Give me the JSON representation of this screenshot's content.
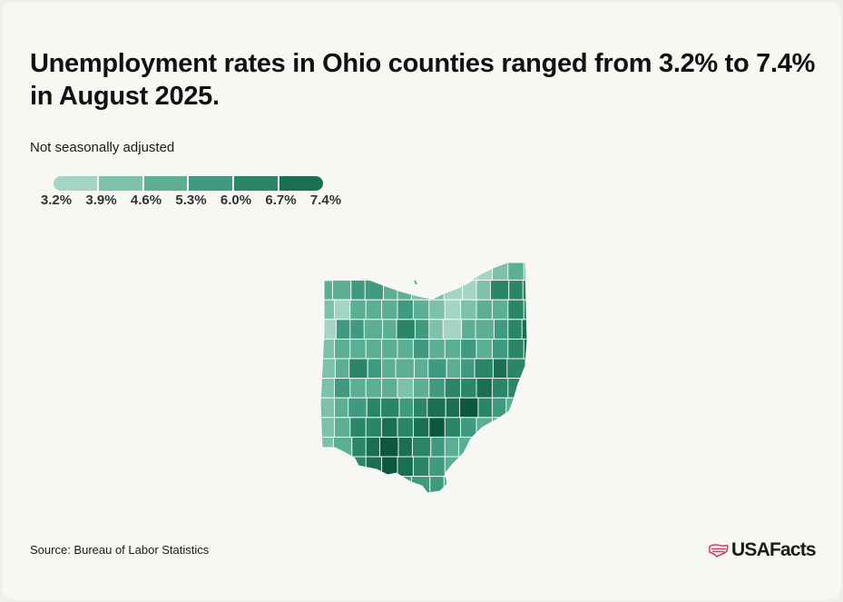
{
  "title": "Unemployment rates in Ohio counties ranged from 3.2% to 7.4% in August 2025.",
  "subtitle": "Not seasonally adjusted",
  "legend": {
    "ticks": [
      "3.2%",
      "3.9%",
      "4.6%",
      "5.3%",
      "6.0%",
      "6.7%",
      "7.4%"
    ],
    "colors": [
      "#a4d4c4",
      "#7dc0ab",
      "#5cae95",
      "#3f9a7f",
      "#2a8569",
      "#1a6e53",
      "#0d573f"
    ]
  },
  "source": "Source: Bureau of Labor Statistics",
  "brand": {
    "name": "USAFacts",
    "accent": "#d23b6e",
    "logo_icon": "us-flag-map-icon"
  },
  "map": {
    "type": "choropleth",
    "region": "Ohio counties",
    "units": "percent unemployed",
    "range": [
      3.2,
      7.4
    ],
    "max_color": "#0d573f",
    "min_color": "#a4d4c4"
  }
}
